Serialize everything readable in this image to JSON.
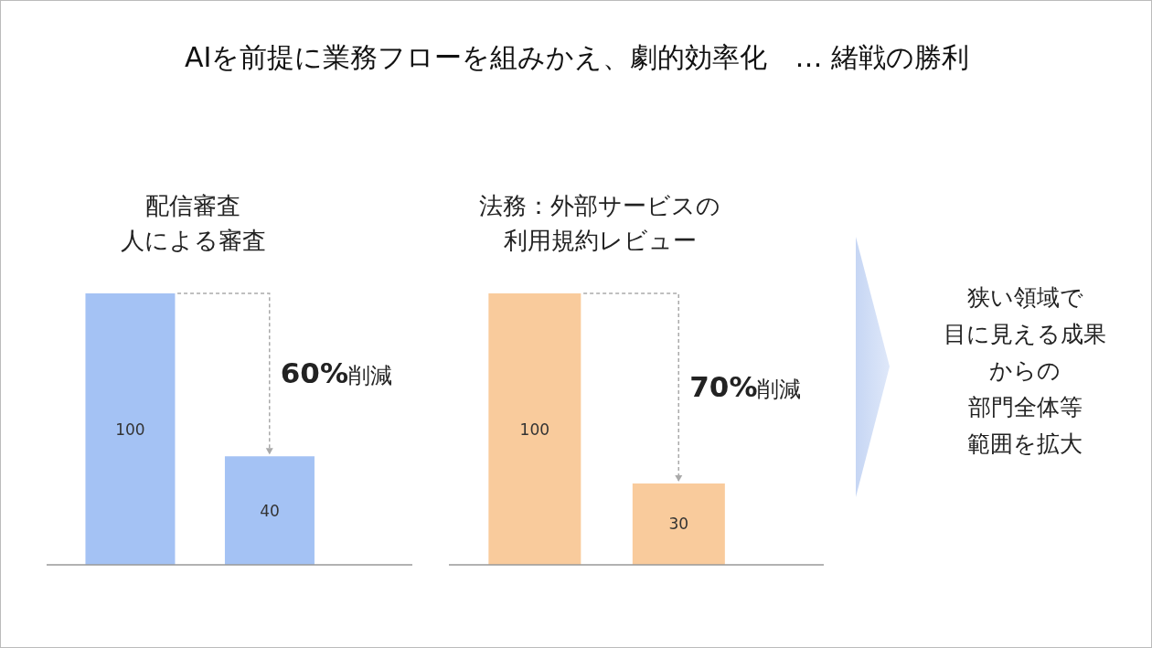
{
  "chart_data": [
    {
      "type": "other",
      "title": "AIを前提に業務フローを組みかえ、劇的効率化　… 緒戦の勝利"
    },
    {
      "type": "bar",
      "title": "配信審査",
      "subtitle": "人による審査",
      "categories": [
        null,
        null
      ],
      "values": [
        100,
        40
      ],
      "color": "#a4c2f4",
      "data_labels": true,
      "annotations": [
        "60%削減"
      ]
    },
    {
      "type": "bar",
      "title": "法務：外部サービスの利用規約レビュー",
      "categories": [
        null,
        null
      ],
      "values": [
        100,
        30
      ],
      "color": "#f9cb9c",
      "data_labels": true,
      "annotations": [
        "70%削減"
      ]
    },
    {
      "type": "other",
      "annotations": [
        "狭い領域で",
        "目に見える成果",
        "からの",
        "部門全体等",
        "範囲を拡大"
      ]
    }
  ]
}
